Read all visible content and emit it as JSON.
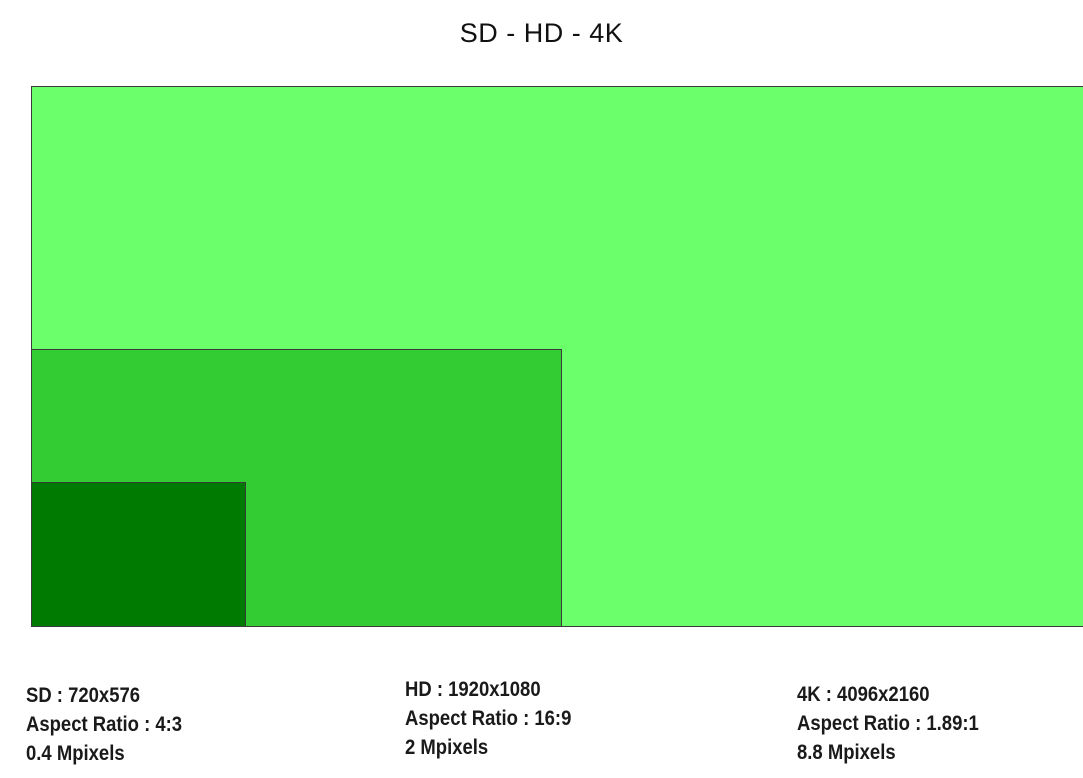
{
  "title": "SD - HD - 4K",
  "colors": {
    "fourk_fill": "#6cff6c",
    "hd_fill": "#33cc33",
    "sd_fill": "#007a00",
    "border": "#3a3a3a"
  },
  "formats": [
    {
      "key": "sd",
      "resolution_label": "SD : 720x576",
      "aspect_label": "Aspect Ratio : 4:3",
      "pixels_label": "0.4 Mpixels"
    },
    {
      "key": "hd",
      "resolution_label": "HD : 1920x1080",
      "aspect_label": "Aspect Ratio : 16:9",
      "pixels_label": "2 Mpixels"
    },
    {
      "key": "4k",
      "resolution_label": "4K : 4096x2160",
      "aspect_label": "Aspect Ratio : 1.89:1",
      "pixels_label": "8.8 Mpixels"
    }
  ]
}
